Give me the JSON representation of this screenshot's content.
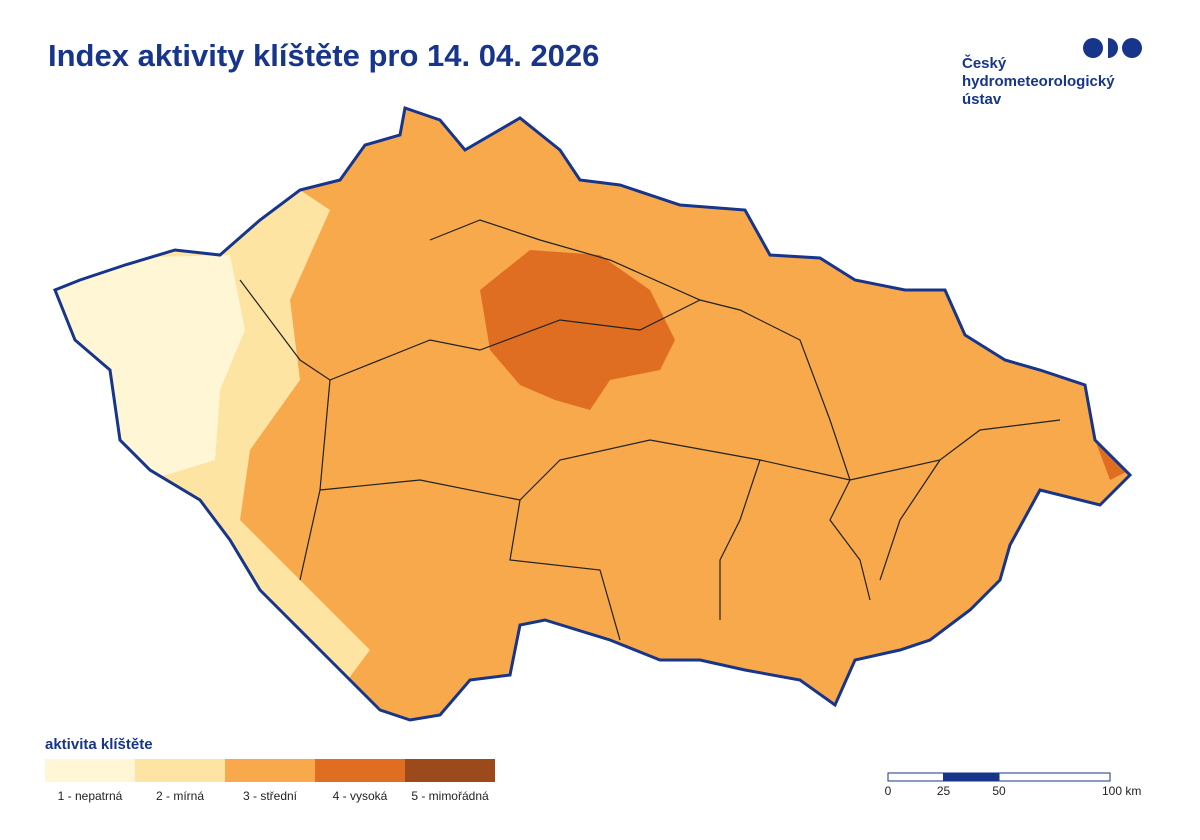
{
  "header": {
    "title": "Index aktivity klíštěte pro 14. 04. 2026",
    "logo": [
      "Český",
      "hydrometeorologický",
      "ústav"
    ]
  },
  "legend": {
    "title": "aktivita klíštěte",
    "items": [
      {
        "label": "1 - nepatrná",
        "color": "#fff6d6"
      },
      {
        "label": "2 - mírná",
        "color": "#fde4a2"
      },
      {
        "label": "3 - střední",
        "color": "#f7a94b"
      },
      {
        "label": "4 - vysoká",
        "color": "#df6e22"
      },
      {
        "label": "5 - mimořádná",
        "color": "#9c4a1c"
      }
    ]
  },
  "scale": {
    "ticks": [
      0,
      25,
      50,
      {
        "value": 100,
        "label": "100 km"
      }
    ]
  }
}
